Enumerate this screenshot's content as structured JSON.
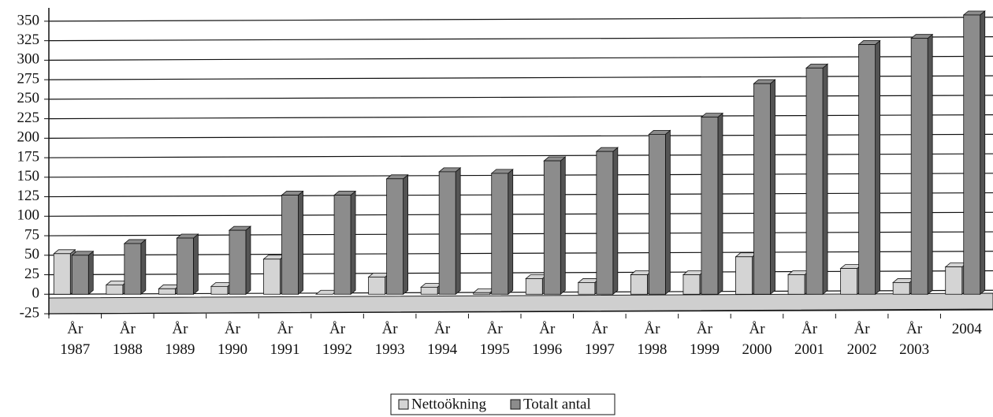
{
  "chart_data": {
    "type": "bar",
    "categories": [
      "År 1987",
      "År 1988",
      "År 1989",
      "År 1990",
      "År 1991",
      "År 1992",
      "År 1993",
      "År 1994",
      "År 1995",
      "År 1996",
      "År 1997",
      "År 1998",
      "År 1999",
      "År 2000",
      "År 2001",
      "År 2002",
      "År 2003",
      "2004"
    ],
    "series": [
      {
        "name": "Nettoökning",
        "color": "#d4d4d4",
        "values": [
          52,
          12,
          7,
          10,
          45,
          0,
          22,
          9,
          2,
          20,
          15,
          25,
          25,
          48,
          25,
          33,
          15,
          35
        ]
      },
      {
        "name": "Totalt antal",
        "color": "#8c8c8c",
        "values": [
          50,
          65,
          72,
          82,
          127,
          127,
          148,
          157,
          155,
          171,
          183,
          205,
          227,
          270,
          290,
          320,
          328,
          358
        ]
      }
    ],
    "ylim": [
      -25,
      360
    ],
    "yticks": [
      -25,
      0,
      25,
      50,
      75,
      100,
      125,
      150,
      175,
      200,
      225,
      250,
      275,
      300,
      325,
      350
    ],
    "grid": true,
    "legend": "bottom"
  }
}
